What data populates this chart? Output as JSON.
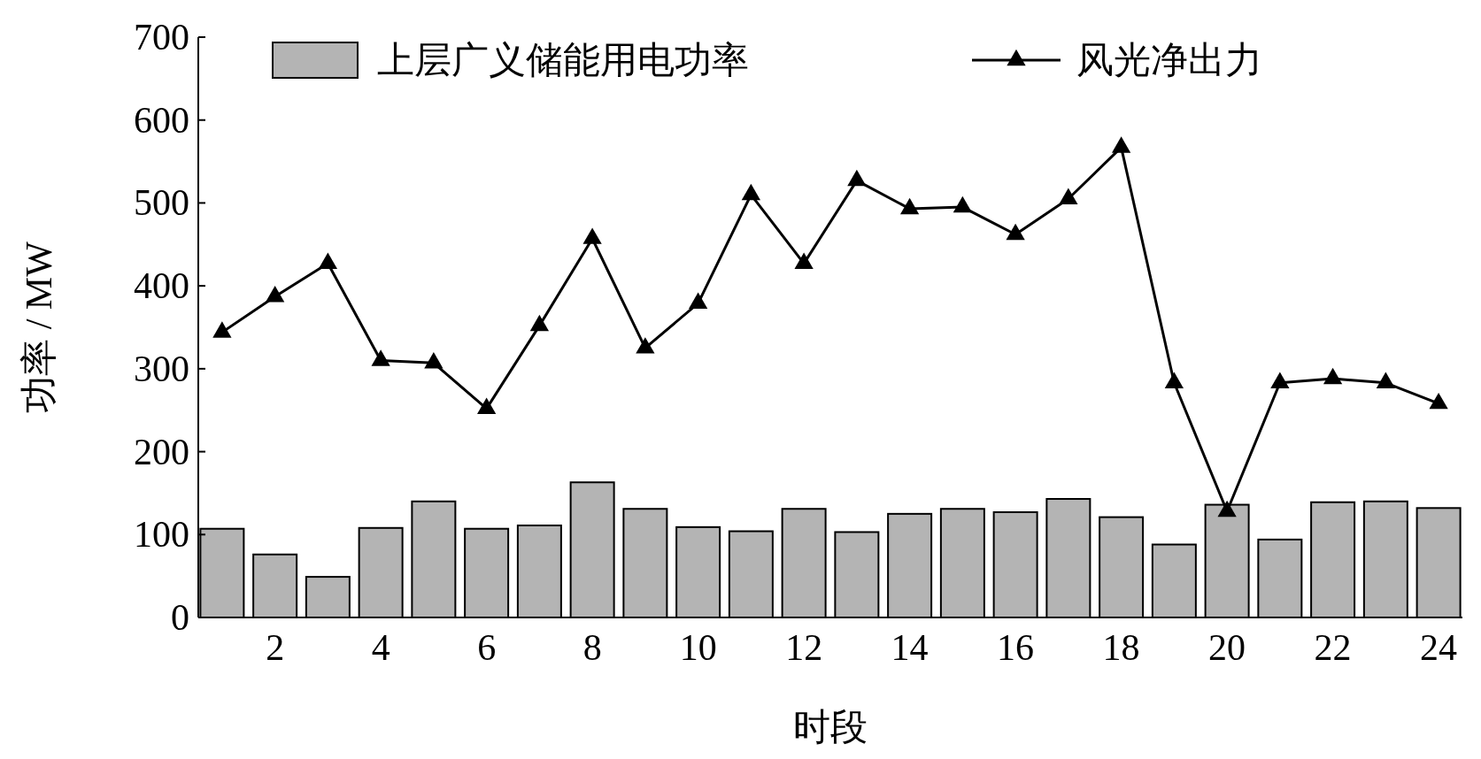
{
  "chart_data": {
    "type": "bar",
    "xlabel": "时段",
    "ylabel": "功率 / MW",
    "x": [
      1,
      2,
      3,
      4,
      5,
      6,
      7,
      8,
      9,
      10,
      11,
      12,
      13,
      14,
      15,
      16,
      17,
      18,
      19,
      20,
      21,
      22,
      23,
      24
    ],
    "xlim": [
      0.55,
      24.45
    ],
    "xticks": [
      2,
      4,
      6,
      8,
      10,
      12,
      14,
      16,
      18,
      20,
      22,
      24
    ],
    "series": [
      {
        "name": "上层广义储能用电功率",
        "color": "#b4b4b4",
        "values": [
          107,
          76,
          49,
          108,
          140,
          107,
          111,
          163,
          131,
          109,
          104,
          131,
          103,
          125,
          131,
          127,
          143,
          121,
          88,
          136,
          94,
          139,
          140,
          132
        ]
      },
      {
        "name": "风光净出力",
        "type": "line",
        "color": "#000000",
        "marker": "triangle",
        "values": [
          344,
          387,
          427,
          310,
          307,
          252,
          352,
          457,
          325,
          379,
          510,
          427,
          527,
          493,
          495,
          462,
          505,
          567,
          283,
          128,
          283,
          288,
          283,
          258
        ]
      }
    ],
    "ylim": [
      0,
      700
    ],
    "yticks": [
      0,
      100,
      200,
      300,
      400,
      500,
      600,
      700
    ],
    "legend": "top"
  }
}
